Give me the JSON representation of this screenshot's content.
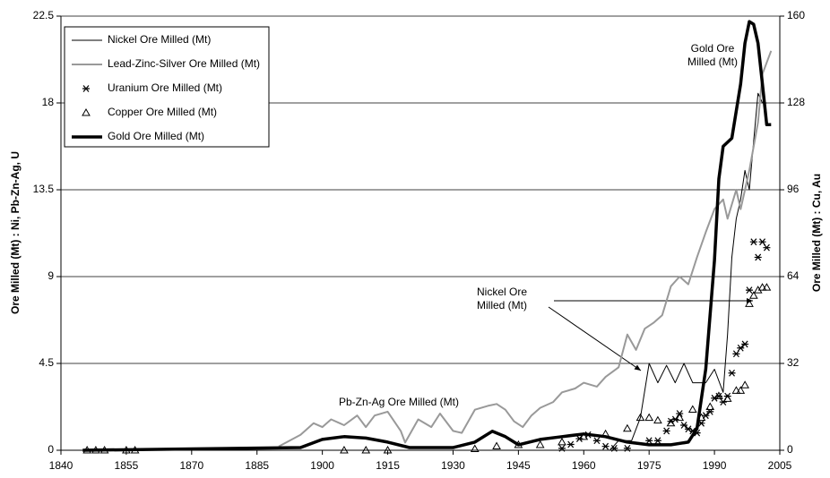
{
  "chart_data": {
    "type": "line",
    "xlabel": null,
    "ylabel": "Ore Milled (Mt) : Ni, Pb-Zn-Ag, U",
    "y2label": "Ore Milled (Mt) : Cu, Au",
    "xlim": [
      1840,
      2005
    ],
    "xticks": [
      1840,
      1855,
      1870,
      1885,
      1900,
      1915,
      1930,
      1945,
      1960,
      1975,
      1990,
      2005
    ],
    "ylim": [
      0,
      22.5
    ],
    "yticks": [
      0,
      4.5,
      9,
      13.5,
      18,
      22.5
    ],
    "y2lim": [
      0,
      160
    ],
    "y2ticks": [
      0,
      32,
      64,
      96,
      128,
      160
    ],
    "grid": true,
    "legend": "upper left",
    "series": [
      {
        "name": "Nickel Ore Milled (Mt)",
        "color": "#000000",
        "linewidth": 1,
        "axis": "y",
        "x": [
          1940,
          1966,
          1968,
          1971,
          1973,
          1975,
          1977,
          1979,
          1981,
          1983,
          1985,
          1988,
          1990,
          1992,
          1993,
          1994,
          1995,
          1996,
          1997,
          1998,
          1999,
          2000,
          2001,
          2002
        ],
        "values": [
          0,
          0,
          0.5,
          0.5,
          1.7,
          4.5,
          3.5,
          4.4,
          3.5,
          4.5,
          3.5,
          3.5,
          4.2,
          3,
          6,
          10,
          12,
          13,
          14.5,
          13.5,
          16,
          18.5,
          18,
          18
        ]
      },
      {
        "name": "Lead-Zinc-Silver Ore Milled (Mt)",
        "color": "#999999",
        "linewidth": 2,
        "axis": "y",
        "x": [
          1890,
          1895,
          1898,
          1900,
          1902,
          1905,
          1908,
          1910,
          1912,
          1915,
          1918,
          1919,
          1922,
          1925,
          1927,
          1930,
          1932,
          1935,
          1938,
          1940,
          1942,
          1944,
          1946,
          1948,
          1950,
          1953,
          1955,
          1958,
          1960,
          1963,
          1965,
          1968,
          1970,
          1972,
          1974,
          1976,
          1978,
          1980,
          1982,
          1984,
          1986,
          1988,
          1990,
          1992,
          1993,
          1995,
          1996,
          1998,
          2000,
          2001,
          2003
        ],
        "values": [
          0.2,
          0.8,
          1.4,
          1.2,
          1.6,
          1.3,
          1.8,
          1.2,
          1.8,
          2.0,
          1.0,
          0.4,
          1.6,
          1.2,
          1.9,
          1.0,
          0.9,
          2.1,
          2.3,
          2.4,
          2.1,
          1.5,
          1.2,
          1.8,
          2.2,
          2.5,
          3.0,
          3.2,
          3.5,
          3.3,
          3.8,
          4.3,
          6.0,
          5.2,
          6.3,
          6.6,
          7.0,
          8.5,
          9.0,
          8.6,
          10.0,
          11.3,
          12.5,
          13.0,
          12.0,
          13.5,
          12.5,
          14.5,
          17.0,
          19.5,
          20.7
        ]
      },
      {
        "name": "Uranium Ore Milled (Mt)",
        "color": "#000000",
        "marker": "asterisk",
        "axis": "y",
        "x": [
          1955,
          1957,
          1959,
          1961,
          1963,
          1965,
          1967,
          1970,
          1975,
          1977,
          1979,
          1980,
          1981,
          1982,
          1983,
          1984,
          1985,
          1986,
          1987,
          1988,
          1989,
          1990,
          1991,
          1992,
          1993,
          1994,
          1995,
          1996,
          1997,
          1998,
          1999,
          2000,
          2001,
          2002
        ],
        "values": [
          0.1,
          0.3,
          0.6,
          0.8,
          0.5,
          0.2,
          0.1,
          0.1,
          0.5,
          0.5,
          1.0,
          1.5,
          1.6,
          1.9,
          1.3,
          1.1,
          1.0,
          0.9,
          1.4,
          1.8,
          2.0,
          2.7,
          2.8,
          2.5,
          2.8,
          4.0,
          5.0,
          5.3,
          5.5,
          8.3,
          10.8,
          10.0,
          10.8,
          10.5
        ]
      },
      {
        "name": "Copper Ore Milled (Mt)",
        "color": "#000000",
        "marker": "triangle",
        "axis": "y2",
        "x": [
          1846,
          1848,
          1850,
          1855,
          1857,
          1905,
          1910,
          1915,
          1935,
          1940,
          1945,
          1950,
          1955,
          1960,
          1965,
          1970,
          1973,
          1975,
          1977,
          1980,
          1982,
          1985,
          1987,
          1989,
          1991,
          1993,
          1995,
          1996,
          1997,
          1998,
          1999,
          2000,
          2001,
          2002
        ],
        "values": [
          0,
          0,
          0,
          0,
          0,
          0,
          0,
          0,
          0.5,
          1.5,
          2,
          2,
          3,
          5,
          6,
          8,
          12,
          12,
          11,
          10,
          12,
          15,
          12,
          16,
          20,
          19,
          22,
          22,
          24,
          54,
          57,
          59,
          60,
          60
        ]
      },
      {
        "name": "Gold Ore Milled (Mt)",
        "color": "#000000",
        "linewidth": 3.5,
        "axis": "y2",
        "x": [
          1845,
          1870,
          1895,
          1900,
          1905,
          1910,
          1915,
          1920,
          1925,
          1930,
          1935,
          1939,
          1942,
          1945,
          1950,
          1955,
          1960,
          1965,
          1970,
          1975,
          1980,
          1984,
          1986,
          1988,
          1990,
          1991,
          1992,
          1994,
          1996,
          1997,
          1998,
          1999,
          2000,
          2001,
          2002,
          2003
        ],
        "values": [
          0,
          0.5,
          1,
          4,
          5,
          4.5,
          3,
          1,
          1,
          1,
          3,
          7,
          5,
          2,
          4,
          5,
          6,
          5,
          3,
          2,
          2,
          3,
          8,
          30,
          70,
          100,
          112,
          115,
          135,
          150,
          158,
          157,
          150,
          135,
          120,
          120
        ]
      }
    ],
    "annotations": [
      {
        "lines": [
          "Gold Ore",
          "Milled (Mt)"
        ]
      },
      {
        "lines": [
          "Nickel Ore",
          "Milled (Mt)"
        ]
      },
      {
        "lines": [
          "Pb-Zn-Ag Ore Milled (Mt)"
        ]
      }
    ]
  }
}
